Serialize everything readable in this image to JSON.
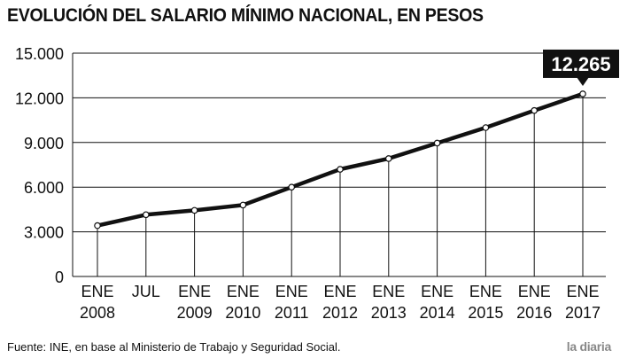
{
  "title": "EVOLUCIÓN DEL SALARIO MÍNIMO NACIONAL, EN PESOS",
  "source": "Fuente: INE, en base al Ministerio de Trabajo y Seguridad Social.",
  "brand": "la diaria",
  "chart_data": {
    "type": "line",
    "title": "EVOLUCIÓN DEL SALARIO MÍNIMO NACIONAL, EN PESOS",
    "xlabel": "",
    "ylabel": "",
    "categories": [
      [
        "ENE",
        "2008"
      ],
      [
        "JUL",
        ""
      ],
      [
        "ENE",
        "2009"
      ],
      [
        "ENE",
        "2010"
      ],
      [
        "ENE",
        "2011"
      ],
      [
        "ENE",
        "2012"
      ],
      [
        "ENE",
        "2013"
      ],
      [
        "ENE",
        "2014"
      ],
      [
        "ENE",
        "2015"
      ],
      [
        "ENE",
        "2016"
      ],
      [
        "ENE",
        "2017"
      ]
    ],
    "values": [
      3416,
      4150,
      4441,
      4799,
      6000,
      7200,
      7920,
      8960,
      10000,
      11150,
      12265
    ],
    "ylim": [
      0,
      15000
    ],
    "yticks": [
      0,
      3000,
      6000,
      9000,
      12000,
      15000
    ],
    "ytick_labels": [
      "0",
      "3.000",
      "6.000",
      "9.000",
      "12.000",
      "15.000"
    ],
    "grid": true,
    "annotation": {
      "index": 10,
      "label": "12.265"
    },
    "colors": {
      "line": "#111111",
      "grid": "#111111",
      "marker_fill": "#ffffff",
      "callout_bg": "#111111"
    }
  }
}
